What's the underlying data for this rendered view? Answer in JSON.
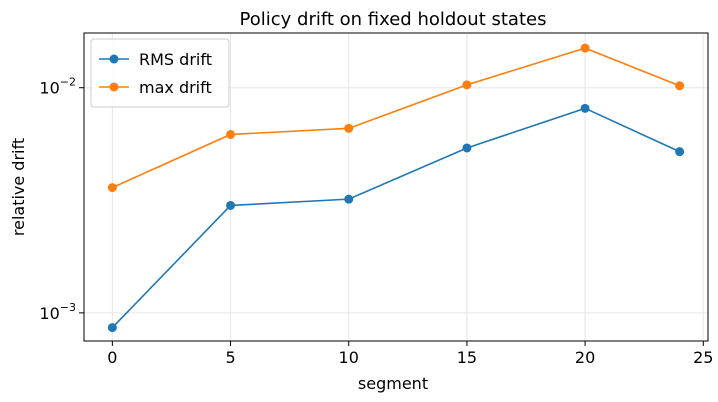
{
  "chart_data": {
    "type": "line",
    "title": "Policy drift on fixed holdout states",
    "xlabel": "segment",
    "ylabel": "relative drift",
    "xlim": [
      -1.2,
      25.2
    ],
    "ylim": [
      0.00075,
      0.0175
    ],
    "yscale": "log",
    "grid": true,
    "legend": "top-left",
    "x_ticks": [
      {
        "value": 0,
        "label": "0"
      },
      {
        "value": 5,
        "label": "5"
      },
      {
        "value": 10,
        "label": "10"
      },
      {
        "value": 15,
        "label": "15"
      },
      {
        "value": 20,
        "label": "20"
      },
      {
        "value": 25,
        "label": "25"
      }
    ],
    "y_ticks": [
      {
        "value": 0.001,
        "label": "10",
        "exp": "−3"
      },
      {
        "value": 0.01,
        "label": "10",
        "exp": "−2"
      }
    ],
    "x": [
      0,
      5,
      10,
      15,
      20,
      24
    ],
    "series": [
      {
        "name": "RMS drift",
        "color": "#1f77b4",
        "values": [
          0.00086,
          0.003,
          0.0032,
          0.0054,
          0.0081,
          0.0052
        ]
      },
      {
        "name": "max drift",
        "color": "#ff7f0e",
        "values": [
          0.0036,
          0.0062,
          0.0066,
          0.0103,
          0.015,
          0.0102
        ]
      }
    ]
  }
}
